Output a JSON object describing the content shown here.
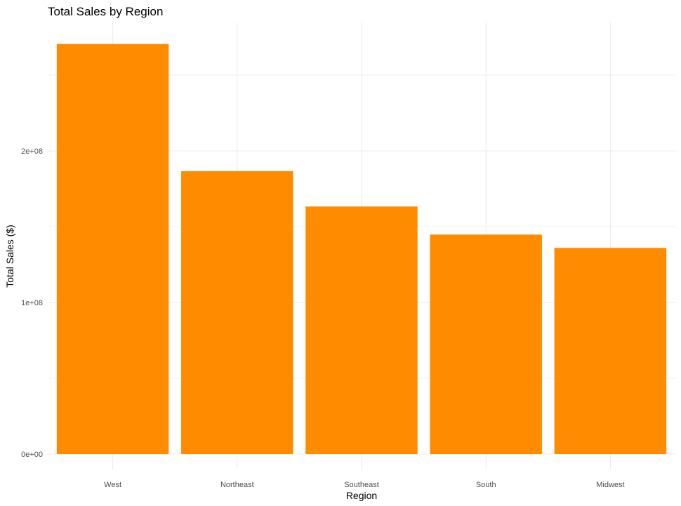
{
  "chart_data": {
    "type": "bar",
    "title": "Total Sales by Region",
    "xlabel": "Region",
    "ylabel": "Total Sales ($)",
    "categories": [
      "West",
      "Northeast",
      "Southeast",
      "South",
      "Midwest"
    ],
    "values": [
      270500000,
      186600000,
      163300000,
      144800000,
      136000000
    ],
    "ylim": [
      0,
      280000000
    ],
    "yticks": [
      0,
      100000000,
      200000000
    ],
    "ytick_labels": [
      "0e+00",
      "1e+08",
      "2e+08"
    ],
    "grid": true,
    "legend": "none",
    "bar_color": "#FF8C00"
  }
}
